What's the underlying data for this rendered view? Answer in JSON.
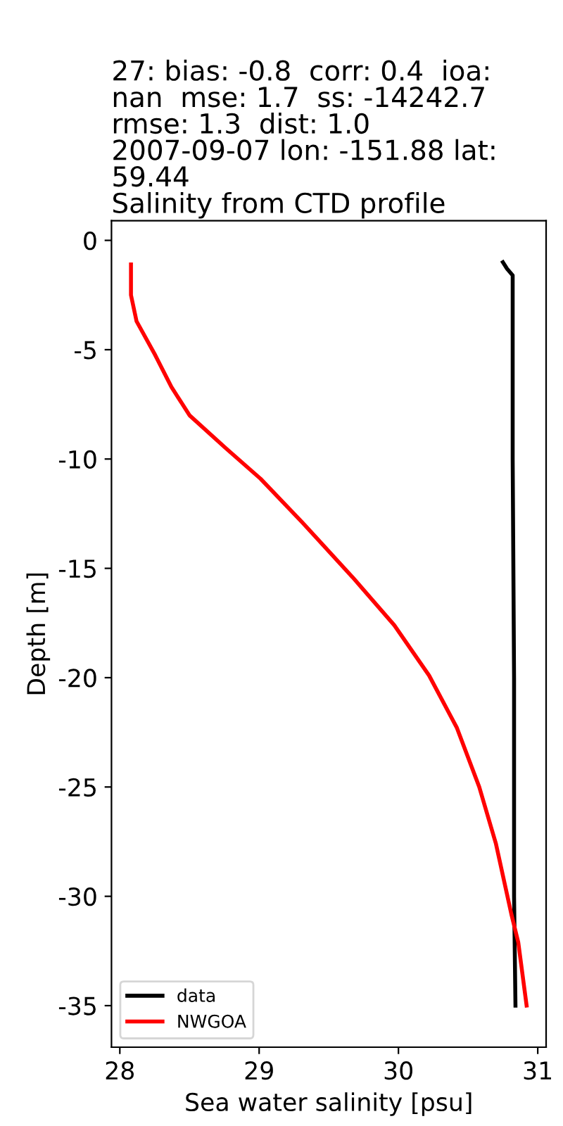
{
  "chart_data": {
    "type": "line",
    "title": "27: bias: -0.8  corr: 0.4  ioa:\nnan  mse: 1.7  ss: -14242.7\nrmse: 1.3  dist: 1.0\n2007-09-07 lon: -151.88 lat:\n59.44\nSalinity from CTD profile",
    "xlabel": "Sea water salinity [psu]",
    "ylabel": "Depth [m]",
    "series": [
      {
        "name": "data",
        "color": "#000000",
        "x": [
          30.75,
          30.78,
          30.82,
          30.82,
          30.82,
          30.83,
          30.83,
          30.84
        ],
        "values": [
          -1.0,
          -1.3,
          -1.6,
          -5.0,
          -10.0,
          -20.0,
          -30.0,
          -35.0
        ]
      },
      {
        "name": "NWGOA",
        "color": "#ff0000",
        "x": [
          28.08,
          28.08,
          28.12,
          28.25,
          28.37,
          28.5,
          28.76,
          29.01,
          29.31,
          29.67,
          29.97,
          30.22,
          30.42,
          30.58,
          30.7,
          30.81,
          30.86,
          30.92
        ],
        "values": [
          -1.1,
          -2.5,
          -3.7,
          -5.2,
          -6.7,
          -8.0,
          -9.5,
          -10.9,
          -12.9,
          -15.4,
          -17.6,
          -19.9,
          -22.3,
          -25.0,
          -27.6,
          -30.8,
          -32.1,
          -35.0
        ]
      }
    ],
    "xlim": [
      27.94,
      31.06
    ],
    "ylim": [
      -36.9,
      0.9
    ],
    "xticks": [
      28,
      29,
      30,
      31
    ],
    "yticks": [
      -35,
      -30,
      -25,
      -20,
      -15,
      -10,
      -5,
      0
    ],
    "grid": false,
    "legend": "bottom left",
    "line_style": "solid",
    "marker": "none"
  }
}
